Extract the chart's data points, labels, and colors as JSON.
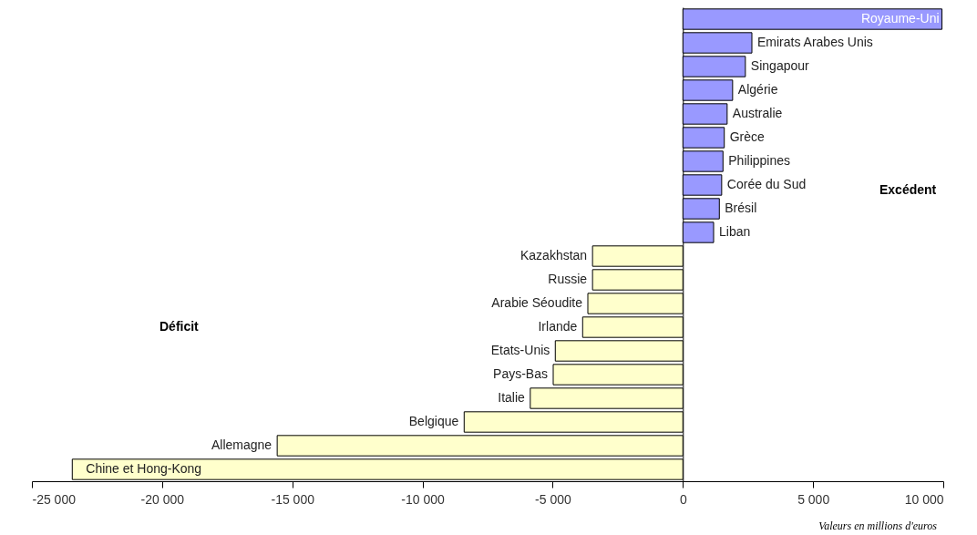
{
  "chart_data": {
    "type": "bar",
    "orientation": "horizontal",
    "categories": [
      "Royaume-Uni",
      "Emirats Arabes Unis",
      "Singapour",
      "Algérie",
      "Australie",
      "Grèce",
      "Philippines",
      "Corée du Sud",
      "Brésil",
      "Liban",
      "Kazakhstan",
      "Russie",
      "Arabie Séoudite",
      "Irlande",
      "Etats-Unis",
      "Pays-Bas",
      "Italie",
      "Belgique",
      "Allemagne",
      "Chine et Hong-Kong"
    ],
    "values": [
      9950,
      2650,
      2400,
      1910,
      1700,
      1590,
      1540,
      1490,
      1400,
      1180,
      -3470,
      -3470,
      -3650,
      -3850,
      -4900,
      -4980,
      -5860,
      -8400,
      -15580,
      -23450
    ],
    "colors": [
      "#9999ff",
      "#9999ff",
      "#9999ff",
      "#9999ff",
      "#9999ff",
      "#9999ff",
      "#9999ff",
      "#9999ff",
      "#9999ff",
      "#9999ff",
      "#ffffcc",
      "#ffffcc",
      "#ffffcc",
      "#ffffcc",
      "#ffffcc",
      "#ffffcc",
      "#ffffcc",
      "#ffffcc",
      "#ffffcc",
      "#ffffcc"
    ],
    "xlim": [
      -25000,
      10000
    ],
    "xticks": [
      {
        "value": -25000,
        "label": "-25 000"
      },
      {
        "value": -20000,
        "label": "-20 000"
      },
      {
        "value": -15000,
        "label": "-15 000"
      },
      {
        "value": -10000,
        "label": "-10 000"
      },
      {
        "value": -5000,
        "label": "-5 000"
      },
      0,
      {
        "value": 5000,
        "label": "5 000"
      },
      {
        "value": 10000,
        "label": "10 000"
      }
    ],
    "tick_labels": "x",
    "annotations": [
      "Excédent",
      "Déficit",
      "Valeurs en millions d'euros"
    ]
  }
}
